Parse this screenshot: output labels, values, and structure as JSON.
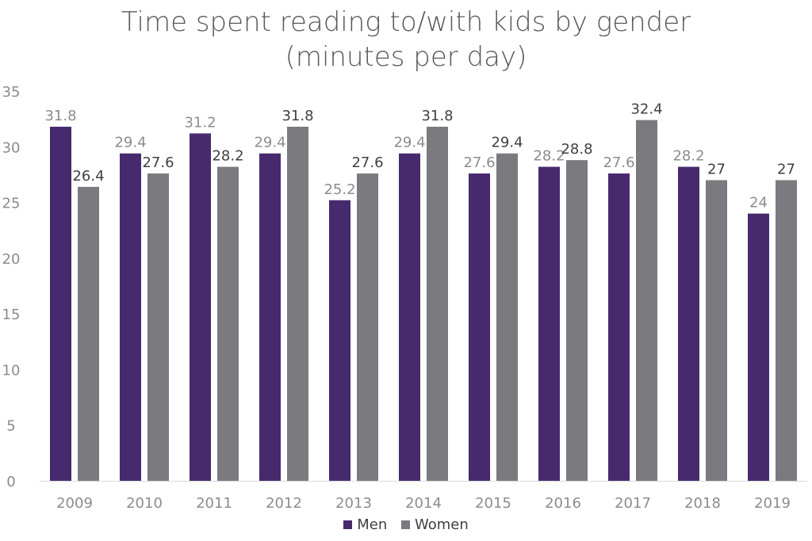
{
  "chart_data": {
    "type": "bar",
    "title_line1": "Time spent reading to/with kids by gender",
    "title_line2": "(minutes per day)",
    "xlabel": "",
    "ylabel": "",
    "ylim": [
      0,
      35
    ],
    "yticks": [
      0,
      5,
      10,
      15,
      20,
      25,
      30,
      35
    ],
    "grid": false,
    "legend_position": "bottom",
    "categories": [
      "2009",
      "2010",
      "2011",
      "2012",
      "2013",
      "2014",
      "2015",
      "2016",
      "2017",
      "2018",
      "2019"
    ],
    "series": [
      {
        "name": "Men",
        "color": "#472a6e",
        "label_color": "#8c8c8c",
        "values": [
          31.8,
          29.4,
          31.2,
          29.4,
          25.2,
          29.4,
          27.6,
          28.2,
          27.6,
          28.2,
          24
        ]
      },
      {
        "name": "Women",
        "color": "#7b7a7f",
        "label_color": "#404040",
        "values": [
          26.4,
          27.6,
          28.2,
          31.8,
          27.6,
          31.8,
          29.4,
          28.8,
          32.4,
          27,
          27
        ]
      }
    ]
  },
  "legend": {
    "men_label": "Men",
    "women_label": "Women"
  }
}
